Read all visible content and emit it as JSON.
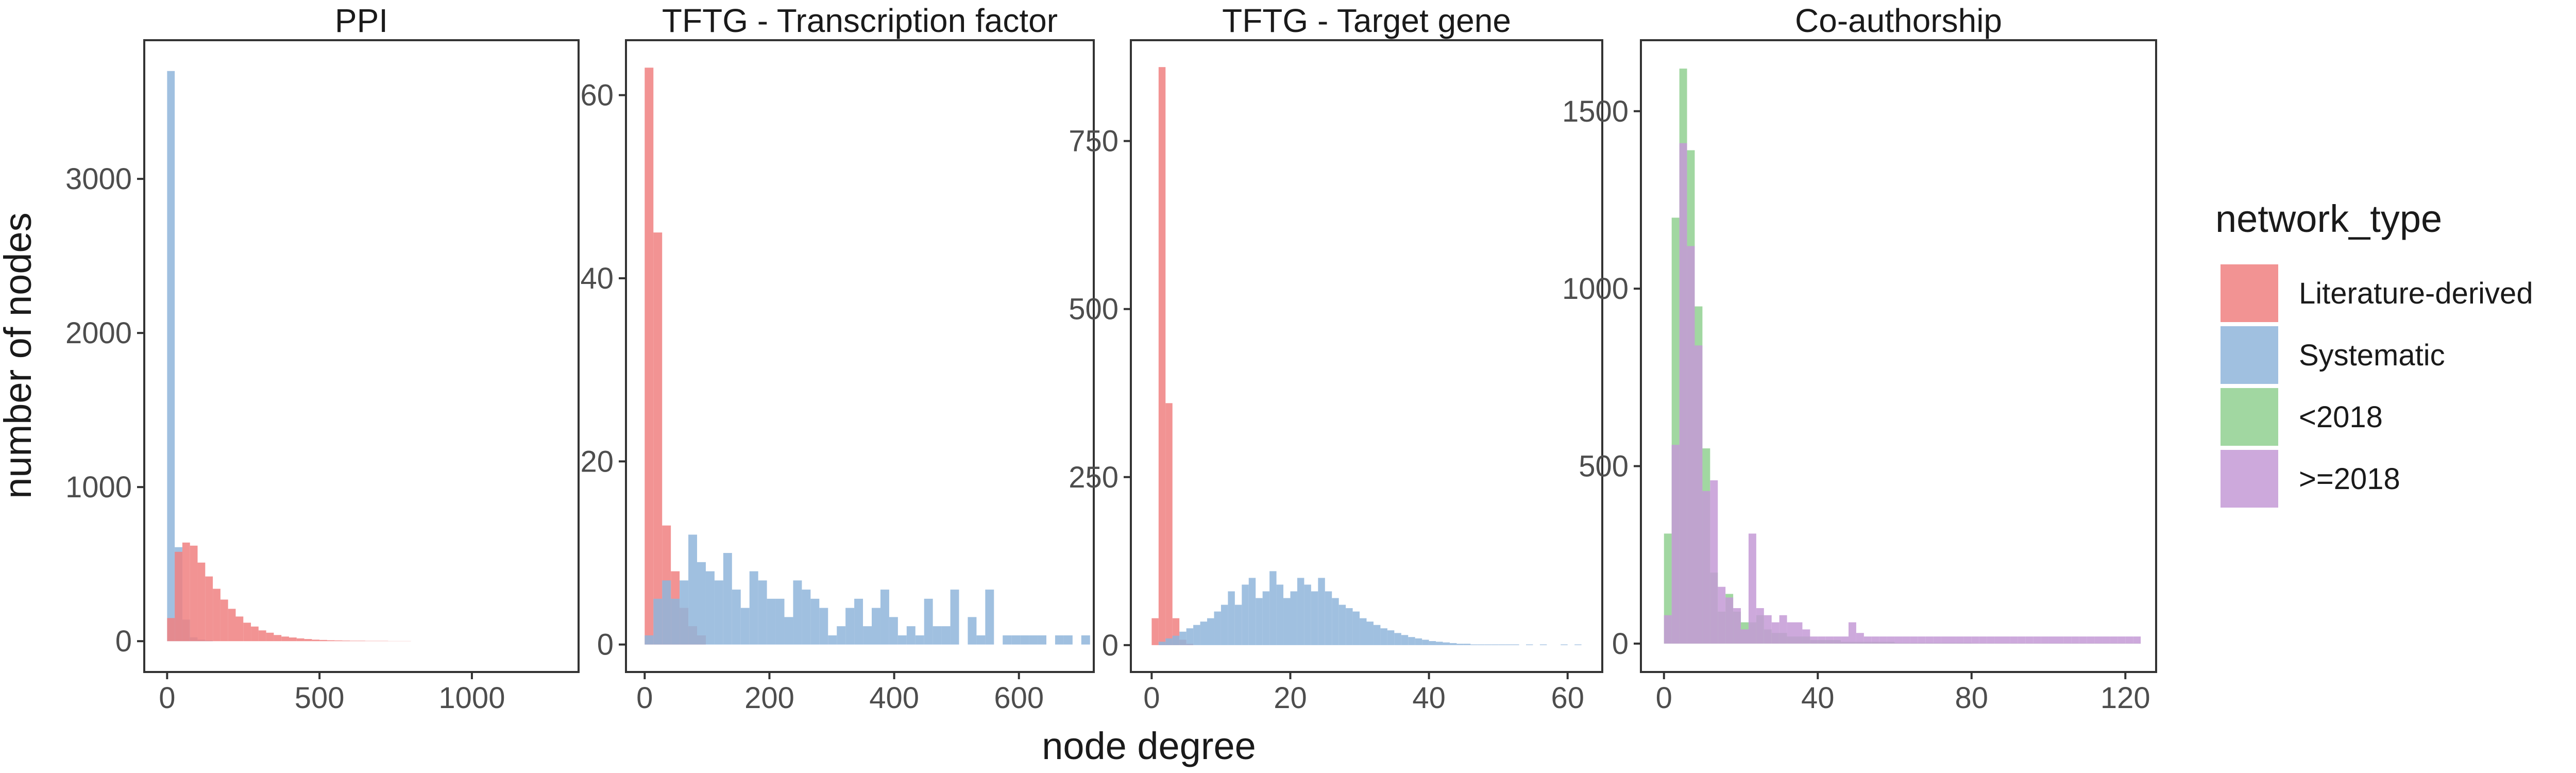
{
  "figure": {
    "xlabel": "node degree",
    "ylabel": "number of nodes",
    "legend_title": "network_type"
  },
  "colors": {
    "Literature-derived": "#f08080",
    "Systematic": "#8fb5da",
    "<2018": "#90d090",
    ">=2018": "#c49ad6"
  },
  "legend": [
    {
      "key": "Literature-derived",
      "label": "Literature-derived"
    },
    {
      "key": "Systematic",
      "label": "Systematic"
    },
    {
      "key": "<2018",
      "label": "<2018"
    },
    {
      "key": ">=2018",
      "label": ">=2018"
    }
  ],
  "chart_data": [
    {
      "type": "bar",
      "title": "PPI",
      "xlim": [
        -75,
        1350
      ],
      "ylim": [
        -200,
        3900
      ],
      "xticks": [
        0,
        500,
        1000
      ],
      "yticks": [
        0,
        1000,
        2000,
        3000
      ],
      "bin_width": 25,
      "series": [
        {
          "name": "Systematic",
          "x0": 0,
          "values": [
            3700,
            610,
            140,
            25,
            10,
            5
          ]
        },
        {
          "name": "Literature-derived",
          "x0": 0,
          "values": [
            150,
            580,
            640,
            620,
            510,
            420,
            340,
            270,
            210,
            160,
            120,
            95,
            70,
            55,
            40,
            30,
            24,
            18,
            14,
            10,
            8,
            6,
            5,
            4,
            3,
            3,
            2,
            2,
            2,
            1,
            1,
            1
          ]
        }
      ]
    },
    {
      "type": "bar",
      "title": "TFTG - Transcription factor",
      "xlim": [
        -30,
        720
      ],
      "ylim": [
        -3,
        66
      ],
      "xticks": [
        0,
        200,
        400,
        600
      ],
      "yticks": [
        0,
        20,
        40,
        60
      ],
      "bin_width": 14,
      "series": [
        {
          "name": "Literature-derived",
          "x0": 0,
          "values": [
            63,
            45,
            13,
            8,
            4,
            2,
            1
          ]
        },
        {
          "name": "Systematic",
          "x0": 0,
          "values": [
            1,
            5,
            7,
            5,
            7,
            12,
            9,
            8,
            7,
            10,
            6,
            4,
            8,
            7,
            5,
            5,
            3,
            7,
            6,
            5,
            4,
            1,
            2,
            4,
            5,
            2,
            4,
            6,
            3,
            1,
            2,
            1,
            5,
            2,
            2,
            6,
            0,
            3,
            1,
            6,
            0,
            1,
            1,
            1,
            1,
            1,
            0,
            1,
            1,
            0,
            1
          ]
        }
      ]
    },
    {
      "type": "bar",
      "title": "TFTG - Target gene",
      "xlim": [
        -3,
        65
      ],
      "ylim": [
        -40,
        900
      ],
      "xticks": [
        0,
        20,
        40,
        60
      ],
      "yticks": [
        0,
        250,
        500,
        750
      ],
      "bin_width": 1,
      "series": [
        {
          "name": "Literature-derived",
          "x0": 0,
          "values": [
            40,
            860,
            360,
            40,
            8,
            2
          ]
        },
        {
          "name": "Systematic",
          "x0": 0,
          "values": [
            0,
            5,
            10,
            14,
            20,
            25,
            30,
            35,
            40,
            50,
            60,
            80,
            60,
            90,
            100,
            70,
            80,
            110,
            90,
            70,
            80,
            100,
            90,
            80,
            100,
            80,
            70,
            60,
            55,
            50,
            40,
            35,
            30,
            25,
            22,
            18,
            15,
            12,
            10,
            8,
            6,
            5,
            4,
            3,
            2,
            2,
            1,
            1,
            1,
            1,
            1,
            1,
            1,
            0,
            1,
            0,
            1,
            0,
            0,
            1,
            0,
            1
          ]
        }
      ]
    },
    {
      "type": "bar",
      "title": "Co-authorship",
      "xlim": [
        -6,
        128
      ],
      "ylim": [
        -80,
        1700
      ],
      "xticks": [
        0,
        40,
        80,
        120
      ],
      "yticks": [
        0,
        500,
        1000,
        1500
      ],
      "bin_width": 2,
      "series": [
        {
          "name": "<2018",
          "x0": 0,
          "values": [
            310,
            1200,
            1620,
            1390,
            950,
            550,
            200,
            90,
            140,
            90,
            60,
            60,
            80,
            40,
            30,
            30,
            20,
            20,
            20,
            10,
            10,
            10,
            10,
            5,
            5,
            5,
            5,
            5,
            5,
            5,
            2,
            2,
            2,
            2,
            2,
            2,
            2,
            2,
            2,
            2,
            1,
            1,
            1,
            1,
            1,
            1,
            1,
            1,
            1,
            1,
            1,
            1,
            1,
            1,
            1,
            1,
            1,
            1,
            1,
            1,
            1,
            1
          ]
        },
        {
          "name": ">=2018",
          "x0": 0,
          "values": [
            80,
            560,
            1410,
            1120,
            840,
            430,
            460,
            160,
            130,
            100,
            40,
            310,
            100,
            80,
            60,
            80,
            60,
            60,
            40,
            20,
            20,
            20,
            20,
            20,
            60,
            30,
            20,
            20,
            20,
            20,
            20,
            20,
            20,
            20,
            20,
            20,
            20,
            20,
            20,
            20,
            20,
            20,
            20,
            20,
            20,
            20,
            20,
            20,
            20,
            20,
            20,
            20,
            20,
            20,
            20,
            20,
            20,
            20,
            20,
            20,
            20,
            20
          ]
        }
      ]
    }
  ]
}
